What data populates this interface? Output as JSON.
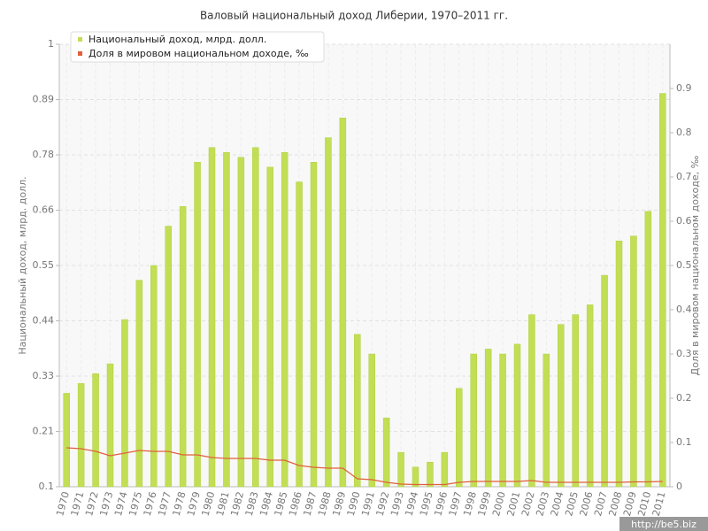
{
  "chart_data": {
    "type": "bar",
    "title": "Валовый национальный доход Либерии, 1970–2011 гг.",
    "y_label": "Национальный доход, млрд. долл.",
    "y2_label": "Доля в мировом национальном доходе, ‰",
    "watermark": "http://be5.biz",
    "legend": "top-left",
    "grid": true,
    "categories": [
      "1970",
      "1971",
      "1972",
      "1973",
      "1974",
      "1975",
      "1976",
      "1977",
      "1978",
      "1979",
      "1980",
      "1981",
      "1982",
      "1983",
      "1984",
      "1985",
      "1986",
      "1987",
      "1988",
      "1989",
      "1990",
      "1991",
      "1992",
      "1993",
      "1994",
      "1995",
      "1996",
      "1997",
      "1998",
      "1999",
      "2000",
      "2001",
      "2002",
      "2003",
      "2004",
      "2005",
      "2006",
      "2007",
      "2008",
      "2009",
      "2010",
      "2011"
    ],
    "series": [
      {
        "name": "Национальный доход, млрд. долл.",
        "type": "bar",
        "color": "#c2de55",
        "values": [
          0.29,
          0.31,
          0.33,
          0.35,
          0.44,
          0.52,
          0.55,
          0.63,
          0.67,
          0.76,
          0.79,
          0.78,
          0.77,
          0.79,
          0.75,
          0.78,
          0.72,
          0.76,
          0.81,
          0.85,
          0.41,
          0.37,
          0.24,
          0.17,
          0.14,
          0.15,
          0.17,
          0.3,
          0.37,
          0.38,
          0.37,
          0.39,
          0.45,
          0.37,
          0.43,
          0.45,
          0.47,
          0.53,
          0.6,
          0.61,
          0.66,
          0.9
        ]
      },
      {
        "name": "Доля в мировом национальном доходе, ‰",
        "type": "line",
        "axis": "y2",
        "color": "#e0603a",
        "values": [
          0.088,
          0.086,
          0.08,
          0.07,
          0.076,
          0.082,
          0.08,
          0.08,
          0.072,
          0.072,
          0.066,
          0.064,
          0.064,
          0.064,
          0.06,
          0.06,
          0.048,
          0.044,
          0.042,
          0.042,
          0.018,
          0.016,
          0.01,
          0.006,
          0.005,
          0.005,
          0.005,
          0.01,
          0.012,
          0.012,
          0.012,
          0.012,
          0.014,
          0.01,
          0.01,
          0.01,
          0.01,
          0.01,
          0.01,
          0.011,
          0.011,
          0.012
        ]
      }
    ],
    "ylim": [
      0.1,
      1
    ],
    "yticks": [
      0.1,
      {
        "value": 0.2125,
        "label": "0.21"
      },
      {
        "value": 0.325,
        "label": "0.33"
      },
      {
        "value": 0.4375,
        "label": "0.44"
      },
      0.55,
      {
        "value": 0.6625,
        "label": "0.66"
      },
      {
        "value": 0.775,
        "label": "0.78"
      },
      {
        "value": 0.8875,
        "label": "0.89"
      },
      1
    ],
    "y2lim": [
      0,
      1
    ],
    "y2ticks": [
      0,
      0.1,
      0.2,
      0.3,
      0.4,
      0.5,
      0.6,
      0.7,
      0.8,
      0.9
    ]
  }
}
